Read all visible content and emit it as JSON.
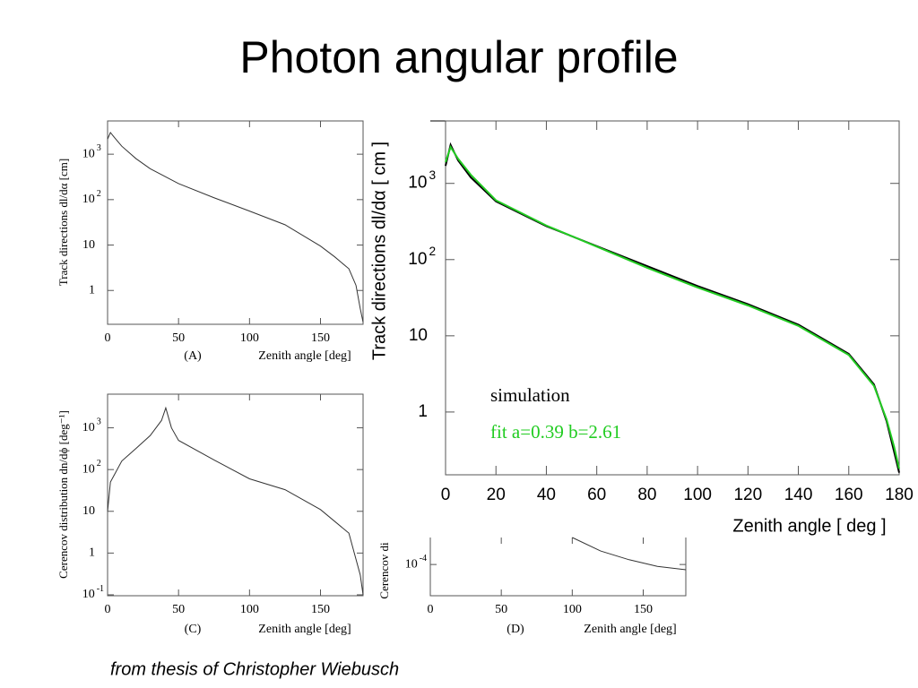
{
  "title": "Photon angular profile",
  "footer": "from thesis of Christopher Wiebusch",
  "chart_data": [
    {
      "type": "line",
      "caption": "(A)",
      "x_label": "Zenith angle  [deg]",
      "y_label": "Track directions  dl/dα  [cm]",
      "log_y": true,
      "xlim": [
        0,
        180
      ],
      "ylim": [
        0.18,
        5400
      ],
      "xticks": [
        0,
        50,
        100,
        150
      ],
      "yticks": [
        1,
        10,
        {
          "value": 100,
          "label": "10",
          "sup": "2"
        },
        {
          "value": 1000,
          "label": "10",
          "sup": "3"
        }
      ],
      "series": [
        {
          "name": null,
          "color": "#333333",
          "x": [
            0,
            2,
            5,
            10,
            20,
            30,
            50,
            75,
            100,
            125,
            150,
            160,
            170,
            175,
            178,
            180
          ],
          "values": [
            2150,
            3000,
            2300,
            1500,
            800,
            480,
            225,
            110,
            56,
            28,
            9.5,
            5.5,
            3,
            1.3,
            0.4,
            0.2
          ]
        }
      ]
    },
    {
      "type": "line",
      "caption": "(C)",
      "x_label": "Zenith angle  [deg]",
      "y_label": "Cerencov distribution dn/dϕ [deg⁻¹]",
      "log_y": true,
      "xlim": [
        0,
        180
      ],
      "ylim": [
        0.095,
        6400
      ],
      "xticks": [
        0,
        50,
        100,
        150
      ],
      "yticks": [
        {
          "value": 0.1,
          "label": "10",
          "sup": "-1"
        },
        1,
        10,
        {
          "value": 100,
          "label": "10",
          "sup": "2"
        },
        {
          "value": 1000,
          "label": "10",
          "sup": "3"
        }
      ],
      "series": [
        {
          "name": null,
          "color": "#333333",
          "x": [
            0,
            2,
            10,
            20,
            30,
            38,
            41,
            45,
            50,
            75,
            100,
            125,
            150,
            170,
            178,
            180
          ],
          "values": [
            10,
            50,
            160,
            320,
            650,
            1500,
            3000,
            1000,
            500,
            170,
            60,
            33,
            11,
            3,
            0.3,
            0.1
          ]
        }
      ]
    },
    {
      "type": "line",
      "caption": "(D)",
      "x_label": "Zenith angle  [deg]",
      "y_label": "Cerencov di",
      "log_y": true,
      "xlim": [
        0,
        180
      ],
      "ylim": [
        1.8e-05,
        0.00044
      ],
      "xticks": [
        0,
        50,
        100,
        150
      ],
      "yticks": [
        {
          "value": 0.0001,
          "label": "10",
          "sup": "-4"
        }
      ],
      "series": [
        {
          "name": null,
          "color": "#333333",
          "x": [
            100,
            120,
            140,
            160,
            180
          ],
          "values": [
            0.00044,
            0.00021,
            0.00013,
            9e-05,
            7.5e-05
          ]
        }
      ]
    },
    {
      "type": "line",
      "x_label": "Zenith angle [ deg ]",
      "y_label": "Track directions dl/dα [ cm ]",
      "log_y": true,
      "xlim": [
        0,
        180
      ],
      "ylim": [
        0.15,
        6600
      ],
      "xticks": [
        0,
        20,
        40,
        60,
        80,
        100,
        120,
        140,
        160,
        180
      ],
      "yticks": [
        1,
        10,
        {
          "value": 100,
          "label": "10",
          "sup": "2"
        },
        {
          "value": 1000,
          "label": "10",
          "sup": "3"
        }
      ],
      "series": [
        {
          "name": "simulation",
          "color": "#000000",
          "x": [
            0,
            2,
            5,
            10,
            20,
            40,
            60,
            80,
            100,
            120,
            140,
            160,
            170,
            175,
            178,
            180
          ],
          "values": [
            1700,
            3200,
            2000,
            1200,
            580,
            275,
            150,
            82,
            45,
            26,
            14,
            5.8,
            2.3,
            0.76,
            0.3,
            0.16
          ]
        },
        {
          "name": "fit a=0.39 b=2.61",
          "color": "#22cc22",
          "x": [
            0,
            2,
            5,
            10,
            20,
            40,
            60,
            80,
            100,
            120,
            140,
            160,
            170,
            175,
            178,
            180
          ],
          "values": [
            1900,
            3000,
            2100,
            1300,
            600,
            280,
            148,
            78,
            43,
            25,
            13.5,
            5.6,
            2.2,
            0.8,
            0.35,
            0.18
          ]
        }
      ]
    }
  ]
}
